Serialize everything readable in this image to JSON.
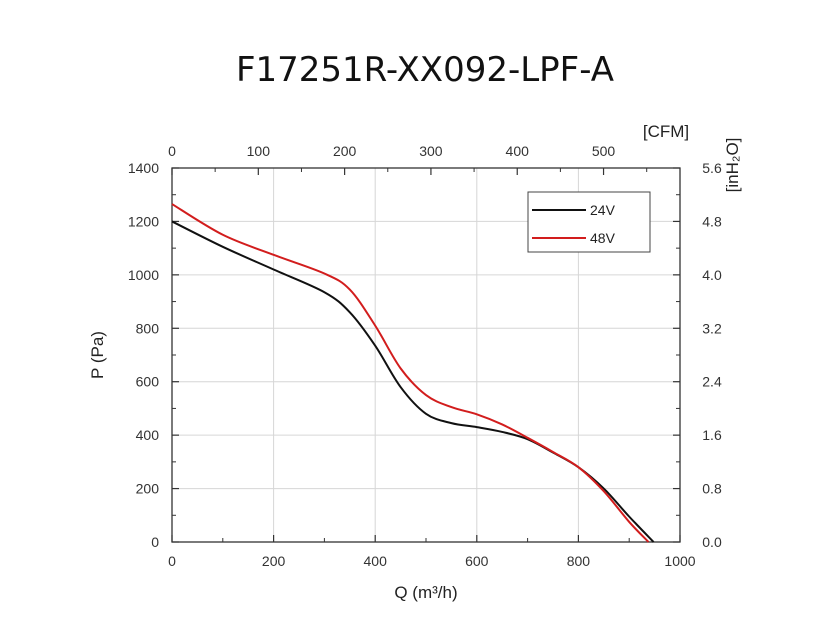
{
  "chart_data": {
    "type": "line",
    "title": "F17251R-XX092-LPF-A",
    "xlabel": "Q (m³/h)",
    "ylabel": "P (Pa)",
    "top_axis_unit": "[CFM]",
    "right_axis_unit": "[inH₂O]",
    "xlim": [
      0,
      1000
    ],
    "ylim": [
      0,
      1400
    ],
    "x_ticks": [
      "0",
      "200",
      "400",
      "600",
      "800",
      "1000"
    ],
    "y_ticks": [
      "0",
      "200",
      "400",
      "600",
      "800",
      "1000",
      "1200",
      "1400"
    ],
    "top_ticks": [
      "0",
      "100",
      "200",
      "300",
      "400",
      "500"
    ],
    "top_tick_values_cfm": [
      0,
      100,
      200,
      300,
      400,
      500
    ],
    "right_ticks": [
      "0.0",
      "0.8",
      "1.6",
      "2.4",
      "3.2",
      "4.0",
      "4.8",
      "5.6"
    ],
    "grid": true,
    "legend_position": "top-right",
    "series": [
      {
        "name": "24V",
        "color": "#111111",
        "x": [
          0,
          100,
          200,
          300,
          350,
          400,
          450,
          500,
          550,
          600,
          650,
          700,
          750,
          800,
          850,
          900,
          948
        ],
        "y": [
          1200,
          1105,
          1020,
          935,
          860,
          735,
          580,
          480,
          445,
          430,
          412,
          385,
          335,
          280,
          200,
          95,
          0
        ]
      },
      {
        "name": "48V",
        "color": "#d21d1d",
        "x": [
          0,
          100,
          200,
          300,
          350,
          400,
          450,
          500,
          550,
          600,
          650,
          700,
          750,
          800,
          850,
          900,
          938
        ],
        "y": [
          1265,
          1150,
          1075,
          1005,
          945,
          810,
          650,
          550,
          505,
          478,
          440,
          390,
          337,
          280,
          190,
          75,
          0
        ]
      }
    ]
  }
}
